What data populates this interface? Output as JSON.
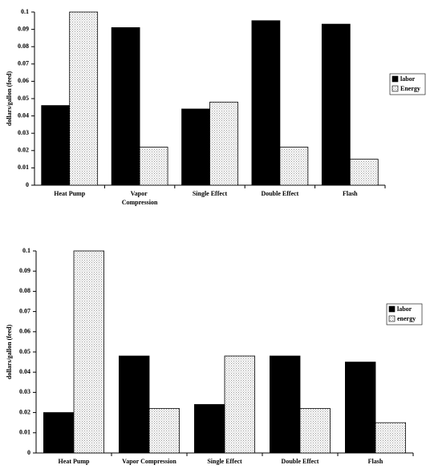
{
  "chart_data": [
    {
      "type": "bar",
      "y_label": "dollars/gallon (feed)",
      "categories": [
        "Heat Pump",
        "Vapor Compression",
        "Single Effect",
        "Double Effect",
        "Flash"
      ],
      "series": [
        {
          "name": "labor",
          "color": "#000000",
          "values": [
            0.046,
            0.091,
            0.044,
            0.095,
            0.093
          ]
        },
        {
          "name": "Energy",
          "color": "#9a9a9a",
          "values": [
            0.1,
            0.022,
            0.048,
            0.022,
            0.015
          ]
        }
      ],
      "ylim": [
        0,
        0.1
      ],
      "yticks": [
        0,
        0.01,
        0.02,
        0.03,
        0.04,
        0.05,
        0.06,
        0.07,
        0.08,
        0.09,
        0.1
      ],
      "legend": "right"
    },
    {
      "type": "bar",
      "y_label": "dollars/gallon (feed)",
      "categories": [
        "Heat Pump",
        "Vapor Compression",
        "Single Effect",
        "Double Effect",
        "Flash"
      ],
      "series": [
        {
          "name": "labor",
          "color": "#000000",
          "values": [
            0.02,
            0.048,
            0.024,
            0.048,
            0.045
          ]
        },
        {
          "name": "energy",
          "color": "#9a9a9a",
          "values": [
            0.1,
            0.022,
            0.048,
            0.022,
            0.015
          ]
        }
      ],
      "ylim": [
        0,
        0.1
      ],
      "yticks": [
        0,
        0.01,
        0.02,
        0.03,
        0.04,
        0.05,
        0.06,
        0.07,
        0.08,
        0.09,
        0.1
      ],
      "legend": "right"
    }
  ]
}
